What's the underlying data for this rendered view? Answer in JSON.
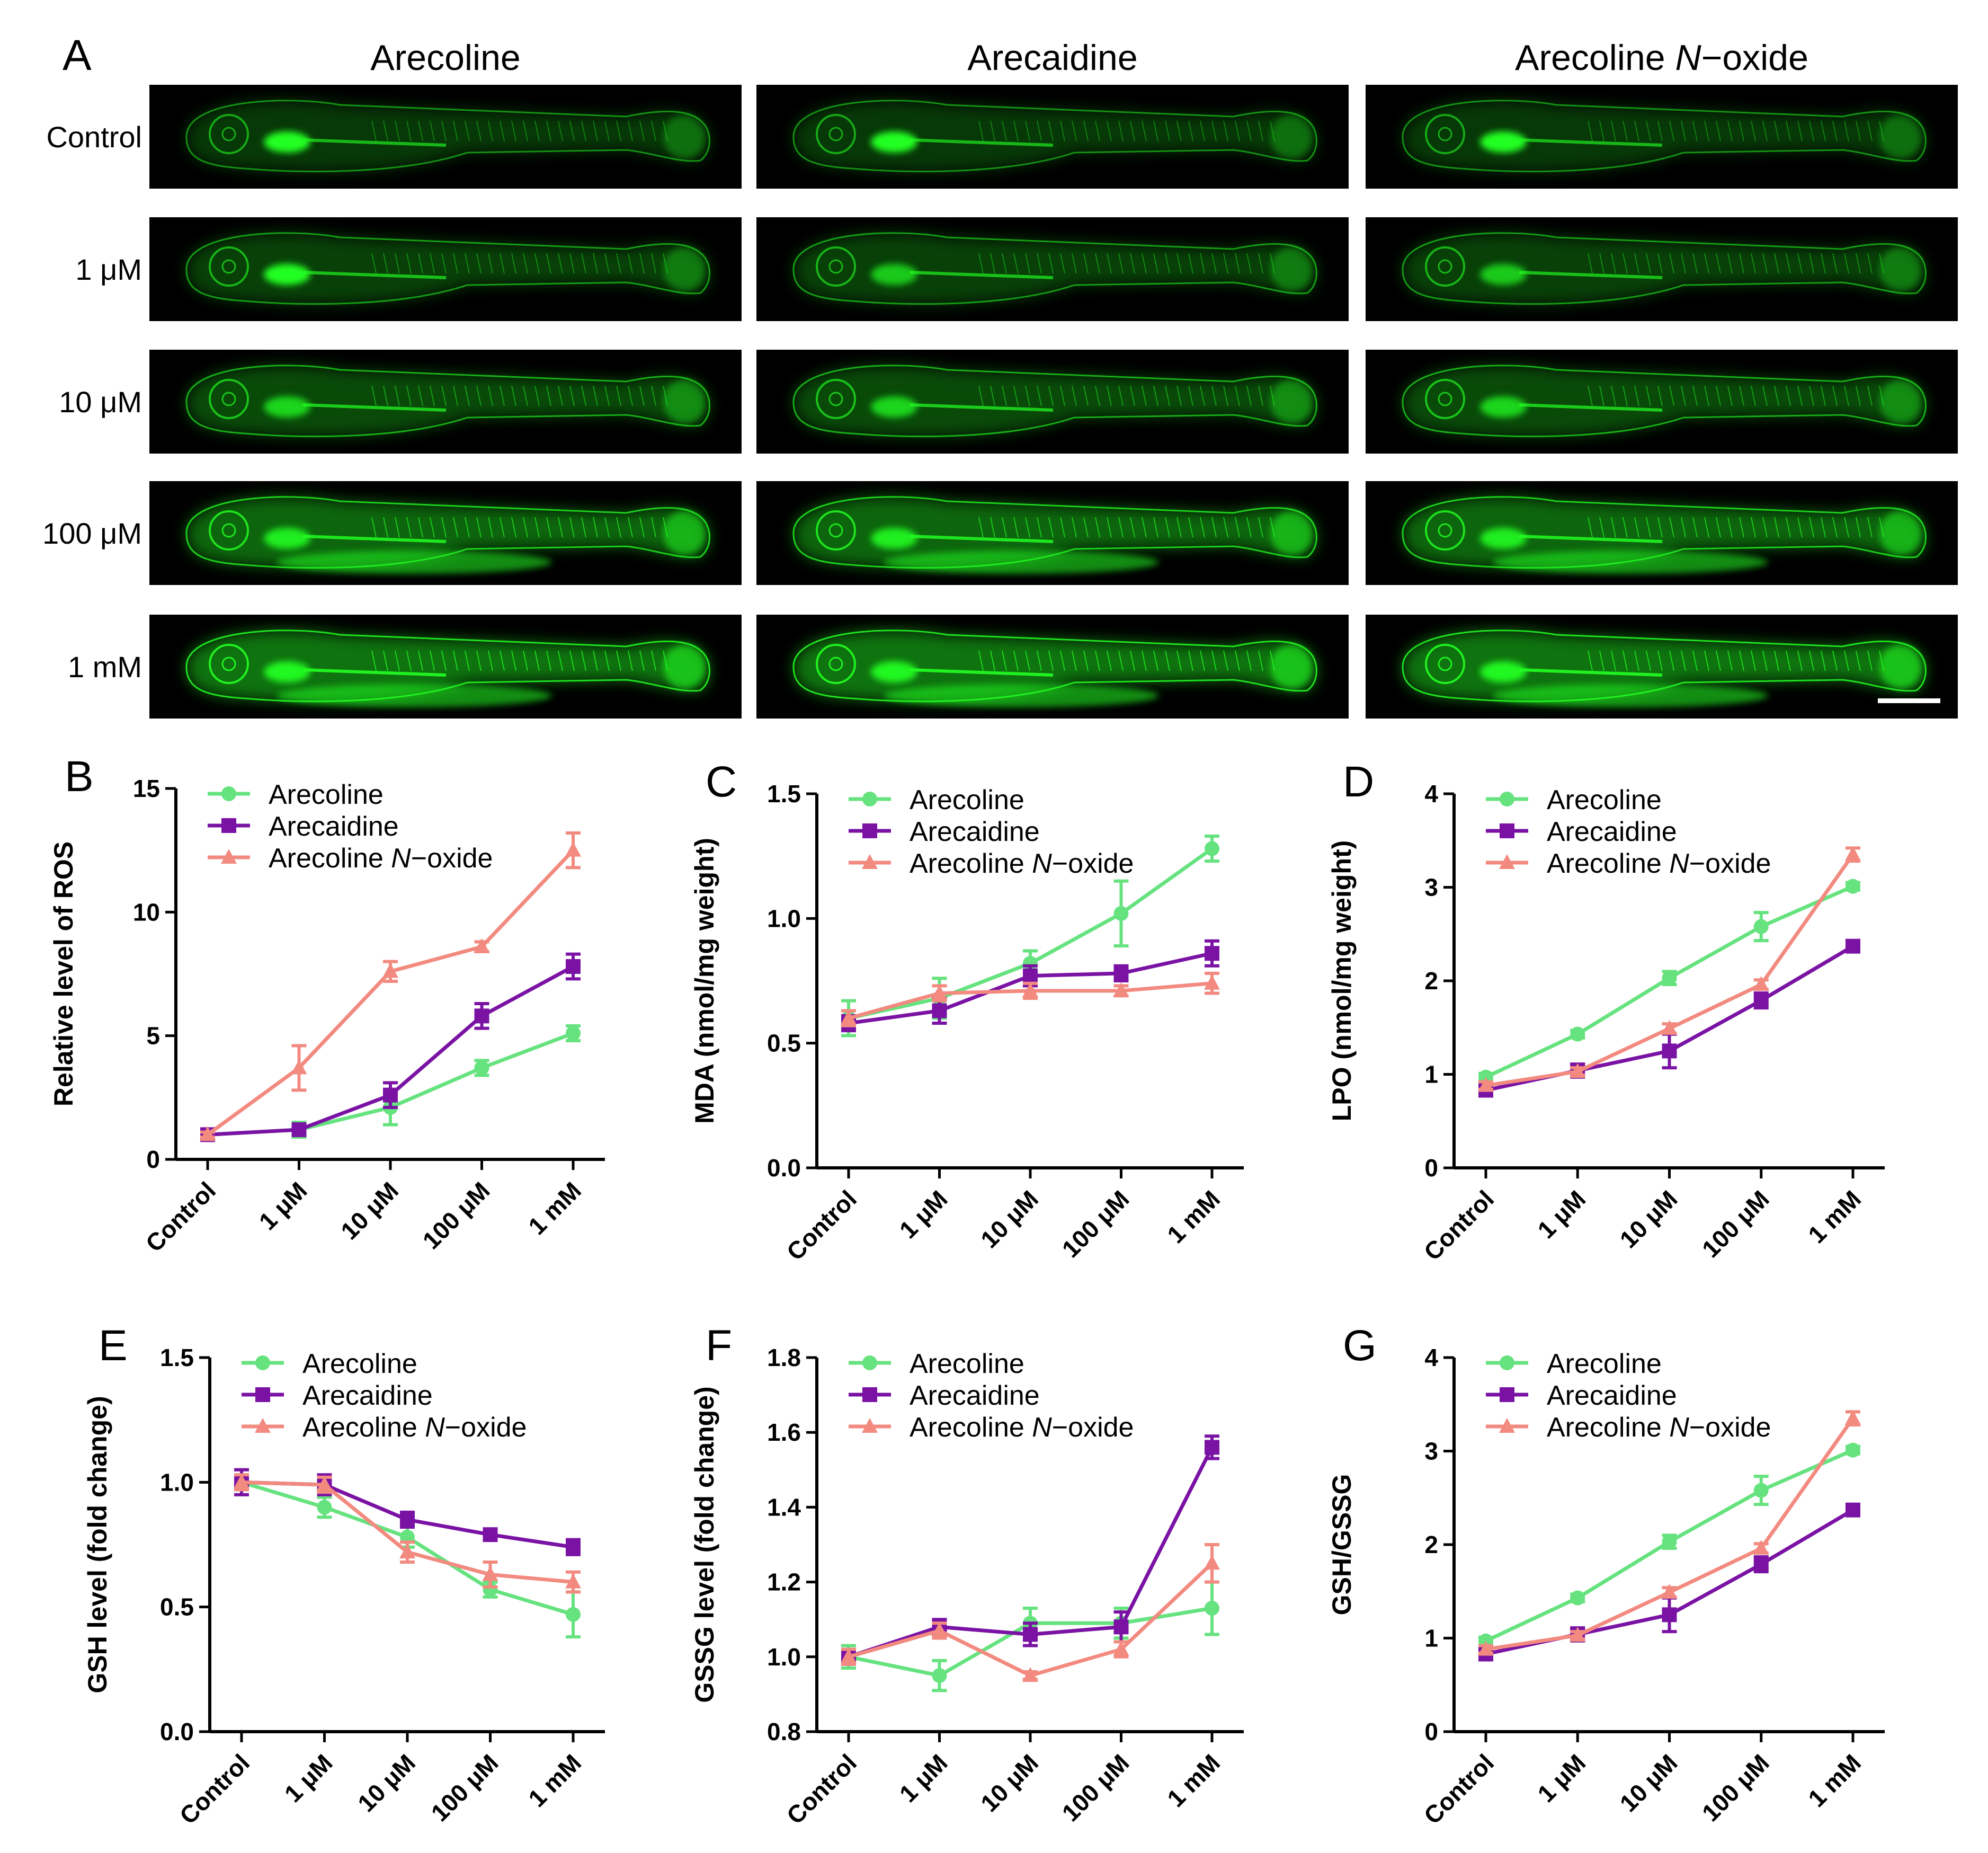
{
  "panel_a": {
    "letter": "A",
    "columns": [
      "Arecoline",
      "Arecaidine",
      "Arecoline N−oxide"
    ],
    "rows": [
      "Control",
      "1 μM",
      "10 μM",
      "100 μM",
      "1 mM"
    ],
    "fluorescence_color": "#22ff22",
    "background_color": "#000000"
  },
  "colors": {
    "Arecoline": "#66e27f",
    "Arecaidine": "#7a13a4",
    "Arecoline N-oxide": "#f28a80"
  },
  "chart_data": [
    {
      "letter": "B",
      "type": "line",
      "ylabel": "Relative level of ROS",
      "ylim": [
        0,
        15
      ],
      "yticks": [
        "0",
        "5",
        "10",
        "15"
      ],
      "categories": [
        "Control",
        "1 μM",
        "10 μM",
        "100 μM",
        "1 mM"
      ],
      "series": [
        {
          "name": "Arecoline",
          "marker": "circle",
          "values": [
            1.0,
            1.2,
            2.1,
            3.7,
            5.1
          ],
          "errors": [
            0.1,
            0.3,
            0.7,
            0.3,
            0.3
          ]
        },
        {
          "name": "Arecaidine",
          "marker": "square",
          "values": [
            1.0,
            1.2,
            2.6,
            5.8,
            7.8
          ],
          "errors": [
            0.1,
            0.2,
            0.5,
            0.5,
            0.5
          ]
        },
        {
          "name": "Arecoline N-oxide",
          "marker": "triangle",
          "values": [
            1.0,
            3.7,
            7.6,
            8.6,
            12.5
          ],
          "errors": [
            0.1,
            0.9,
            0.4,
            0.2,
            0.7
          ]
        }
      ]
    },
    {
      "letter": "C",
      "type": "line",
      "ylabel": "MDA (nmol/mg weight)",
      "ylim": [
        0,
        1.5
      ],
      "yticks": [
        "0.0",
        "0.5",
        "1.0",
        "1.5"
      ],
      "categories": [
        "Control",
        "1 μM",
        "10 μM",
        "100 μM",
        "1 mM"
      ],
      "series": [
        {
          "name": "Arecoline",
          "marker": "circle",
          "values": [
            0.6,
            0.68,
            0.82,
            1.02,
            1.28
          ],
          "errors": [
            0.07,
            0.08,
            0.05,
            0.13,
            0.05
          ]
        },
        {
          "name": "Arecaidine",
          "marker": "square",
          "values": [
            0.58,
            0.63,
            0.77,
            0.78,
            0.86
          ],
          "errors": [
            0.03,
            0.05,
            0.04,
            0.03,
            0.05
          ]
        },
        {
          "name": "Arecoline N-oxide",
          "marker": "triangle",
          "values": [
            0.6,
            0.7,
            0.71,
            0.71,
            0.74
          ],
          "errors": [
            0.03,
            0.03,
            0.03,
            0.02,
            0.04
          ]
        }
      ]
    },
    {
      "letter": "D",
      "type": "line",
      "ylabel": "LPO (nmol/mg weight)",
      "ylim": [
        0,
        4
      ],
      "yticks": [
        "0",
        "1",
        "2",
        "3",
        "4"
      ],
      "categories": [
        "Control",
        "1 μM",
        "10 μM",
        "100 μM",
        "1 mM"
      ],
      "series": [
        {
          "name": "Arecoline",
          "marker": "circle",
          "values": [
            0.97,
            1.43,
            2.03,
            2.58,
            3.01
          ],
          "errors": [
            0.04,
            0.04,
            0.07,
            0.15,
            0.04
          ]
        },
        {
          "name": "Arecaidine",
          "marker": "square",
          "values": [
            0.83,
            1.04,
            1.25,
            1.79,
            2.37
          ],
          "errors": [
            0.05,
            0.07,
            0.18,
            0.08,
            0.04
          ]
        },
        {
          "name": "Arecoline N-oxide",
          "marker": "triangle",
          "values": [
            0.88,
            1.03,
            1.49,
            1.96,
            3.35
          ],
          "errors": [
            0.04,
            0.04,
            0.05,
            0.05,
            0.07
          ]
        }
      ]
    },
    {
      "letter": "E",
      "type": "line",
      "ylabel": "GSH level (fold change)",
      "ylim": [
        0,
        1.5
      ],
      "yticks": [
        "0.0",
        "0.5",
        "1.0",
        "1.5"
      ],
      "categories": [
        "Control",
        "1 μM",
        "10 μM",
        "100 μM",
        "1 mM"
      ],
      "series": [
        {
          "name": "Arecoline",
          "marker": "circle",
          "values": [
            1.0,
            0.9,
            0.78,
            0.57,
            0.47
          ],
          "errors": [
            0.05,
            0.04,
            0.04,
            0.03,
            0.09
          ]
        },
        {
          "name": "Arecaidine",
          "marker": "square",
          "values": [
            1.0,
            0.99,
            0.85,
            0.79,
            0.74
          ],
          "errors": [
            0.05,
            0.04,
            0.03,
            0.02,
            0.03
          ]
        },
        {
          "name": "Arecoline N-oxide",
          "marker": "triangle",
          "values": [
            1.0,
            0.99,
            0.72,
            0.63,
            0.6
          ],
          "errors": [
            0.03,
            0.03,
            0.04,
            0.05,
            0.04
          ]
        }
      ]
    },
    {
      "letter": "F",
      "type": "line",
      "ylabel": "GSSG level (fold change)",
      "ylim": [
        0.8,
        1.8
      ],
      "yticks": [
        "0.8",
        "1.0",
        "1.2",
        "1.4",
        "1.6",
        "1.8"
      ],
      "categories": [
        "Control",
        "1 μM",
        "10 μM",
        "100 μM",
        "1 mM"
      ],
      "series": [
        {
          "name": "Arecoline",
          "marker": "circle",
          "values": [
            1.0,
            0.95,
            1.09,
            1.09,
            1.13
          ],
          "errors": [
            0.03,
            0.04,
            0.04,
            0.04,
            0.07
          ]
        },
        {
          "name": "Arecaidine",
          "marker": "square",
          "values": [
            1.0,
            1.08,
            1.06,
            1.08,
            1.56
          ],
          "errors": [
            0.02,
            0.02,
            0.03,
            0.04,
            0.03
          ]
        },
        {
          "name": "Arecoline N-oxide",
          "marker": "triangle",
          "values": [
            1.0,
            1.07,
            0.95,
            1.02,
            1.25
          ],
          "errors": [
            0.02,
            0.02,
            0.01,
            0.02,
            0.05
          ]
        }
      ]
    },
    {
      "letter": "G",
      "type": "line",
      "ylabel": "GSH/GSSG",
      "ylim": [
        0,
        4
      ],
      "yticks": [
        "0",
        "1",
        "2",
        "3",
        "4"
      ],
      "categories": [
        "Control",
        "1 μM",
        "10 μM",
        "100 μM",
        "1 mM"
      ],
      "series": [
        {
          "name": "Arecoline",
          "marker": "circle",
          "values": [
            0.97,
            1.43,
            2.03,
            2.58,
            3.01
          ],
          "errors": [
            0.04,
            0.04,
            0.07,
            0.15,
            0.04
          ]
        },
        {
          "name": "Arecaidine",
          "marker": "square",
          "values": [
            0.83,
            1.04,
            1.25,
            1.79,
            2.37
          ],
          "errors": [
            0.05,
            0.07,
            0.18,
            0.08,
            0.04
          ]
        },
        {
          "name": "Arecoline N-oxide",
          "marker": "triangle",
          "values": [
            0.88,
            1.03,
            1.49,
            1.96,
            3.35
          ],
          "errors": [
            0.04,
            0.04,
            0.05,
            0.05,
            0.07
          ]
        }
      ]
    }
  ]
}
